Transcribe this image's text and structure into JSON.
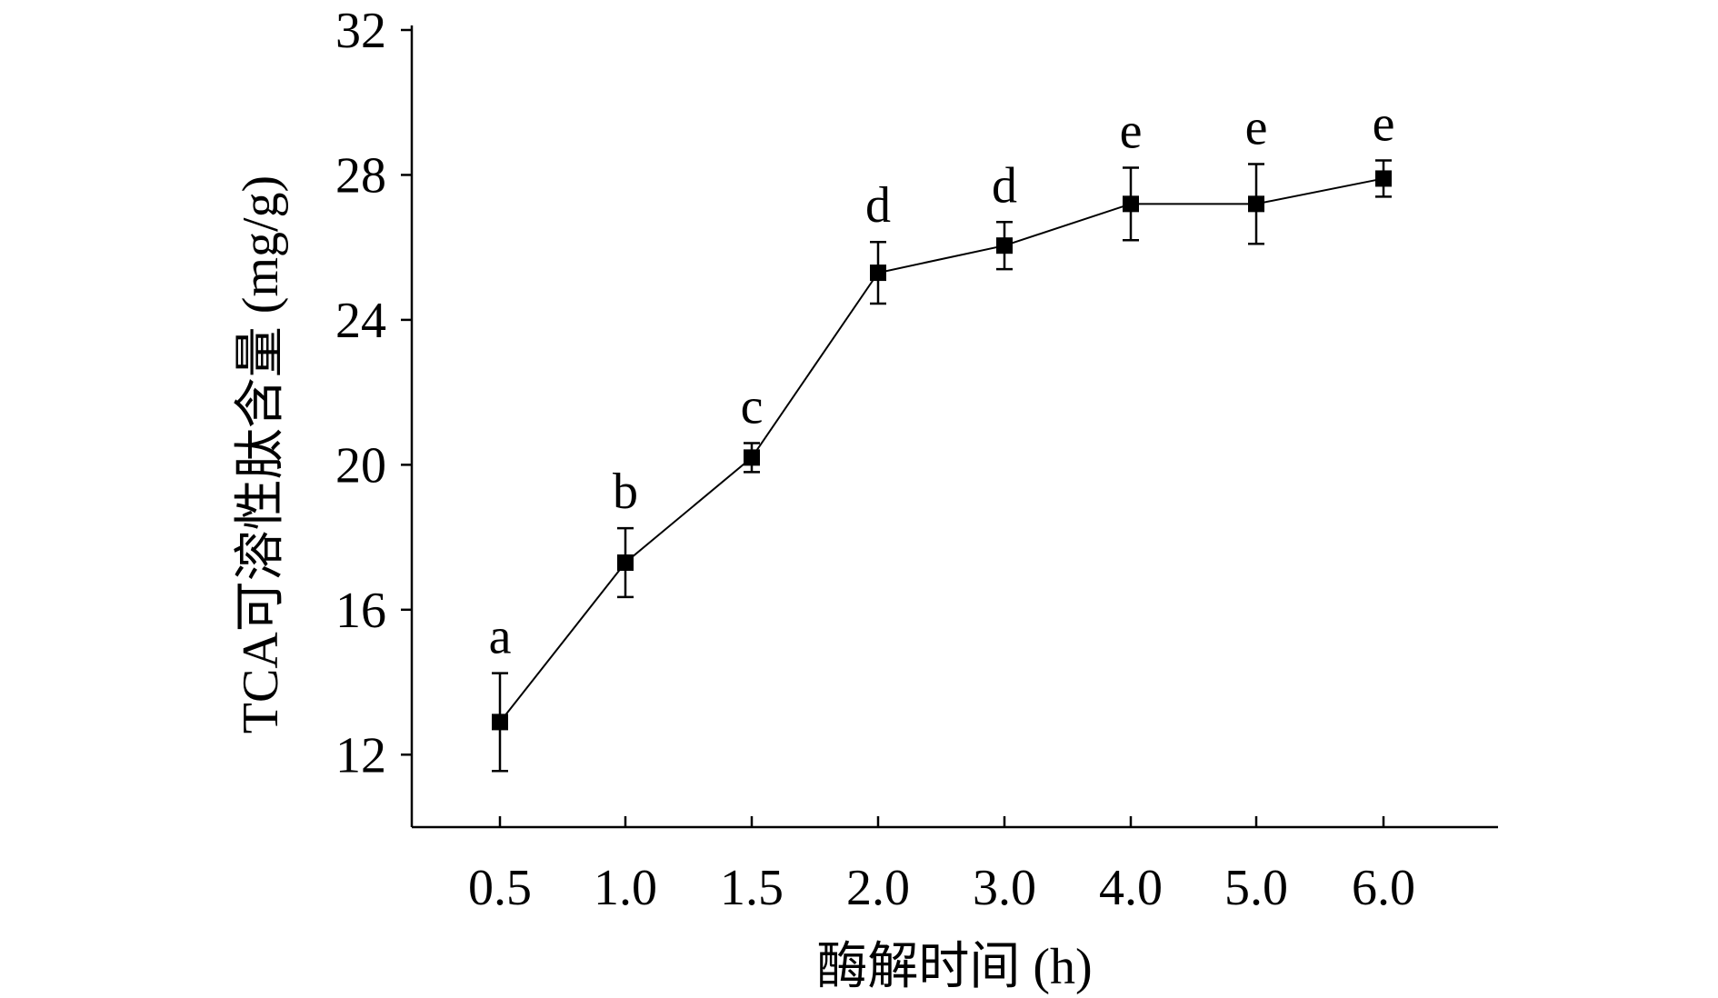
{
  "chart_data": {
    "type": "line",
    "xlabel": "酶解时间 (h)",
    "ylabel": "TCA可溶性肽含量 (mg/g)",
    "categories": [
      "0.5",
      "1.0",
      "1.5",
      "2.0",
      "3.0",
      "4.0",
      "5.0",
      "6.0"
    ],
    "series": [
      {
        "values": [
          12.9,
          17.3,
          20.2,
          25.3,
          26.05,
          27.2,
          27.2,
          27.9
        ],
        "errors": [
          1.35,
          0.95,
          0.4,
          0.85,
          0.65,
          1.0,
          1.1,
          0.5
        ],
        "labels": [
          "a",
          "b",
          "c",
          "d",
          "d",
          "e",
          "e",
          "e"
        ],
        "marker": "square",
        "color": "#000000"
      }
    ],
    "ylim": [
      10,
      32
    ],
    "yticks": [
      12,
      16,
      20,
      24,
      28,
      32
    ],
    "grid": false
  }
}
